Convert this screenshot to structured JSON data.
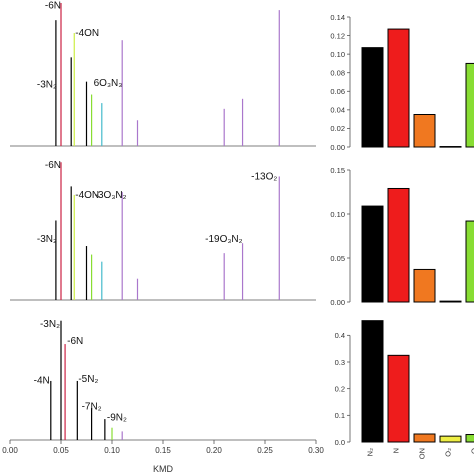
{
  "chart_data": [
    {
      "type": "bar",
      "title": "",
      "xlabel": "",
      "ylabel": "",
      "xlim": [
        0,
        0.3
      ],
      "ylim": [
        0,
        1
      ],
      "peaks": [
        {
          "x": 0.045,
          "y": 0.88,
          "color": "#000000"
        },
        {
          "x": 0.05,
          "y": 1.0,
          "color": "#cc2244"
        },
        {
          "x": 0.06,
          "y": 0.62,
          "color": "#000000"
        },
        {
          "x": 0.063,
          "y": 0.79,
          "color": "#ccee44"
        },
        {
          "x": 0.075,
          "y": 0.45,
          "color": "#000000"
        },
        {
          "x": 0.08,
          "y": 0.36,
          "color": "#88dd33"
        },
        {
          "x": 0.09,
          "y": 0.3,
          "color": "#44bbcc"
        },
        {
          "x": 0.11,
          "y": 0.74,
          "color": "#aa77cc"
        },
        {
          "x": 0.125,
          "y": 0.18,
          "color": "#aa77cc"
        },
        {
          "x": 0.21,
          "y": 0.26,
          "color": "#aa77cc"
        },
        {
          "x": 0.228,
          "y": 0.33,
          "color": "#aa77cc"
        },
        {
          "x": 0.264,
          "y": 0.95,
          "color": "#aa77cc"
        }
      ],
      "labels": [
        {
          "text": "-6N",
          "x": 0.05,
          "y": 0.96,
          "anchor": "end"
        },
        {
          "text": "-4ON",
          "x": 0.064,
          "y": 0.77,
          "anchor": "start"
        },
        {
          "text": "-3N₂",
          "x": 0.046,
          "y": 0.41,
          "anchor": "end"
        },
        {
          "text": "6O₃N₃",
          "x": 0.082,
          "y": 0.42,
          "anchor": "start"
        }
      ]
    },
    {
      "type": "bar",
      "title": "",
      "xlabel": "",
      "ylabel": "",
      "xlim": [
        0,
        0.3
      ],
      "ylim": [
        0,
        1
      ],
      "peaks": [
        {
          "x": 0.045,
          "y": 0.56,
          "color": "#000000"
        },
        {
          "x": 0.05,
          "y": 0.97,
          "color": "#cc2244"
        },
        {
          "x": 0.06,
          "y": 0.8,
          "color": "#000000"
        },
        {
          "x": 0.063,
          "y": 0.74,
          "color": "#ccee44"
        },
        {
          "x": 0.075,
          "y": 0.38,
          "color": "#000000"
        },
        {
          "x": 0.08,
          "y": 0.32,
          "color": "#88dd33"
        },
        {
          "x": 0.09,
          "y": 0.27,
          "color": "#44bbcc"
        },
        {
          "x": 0.11,
          "y": 0.76,
          "color": "#aa77cc"
        },
        {
          "x": 0.125,
          "y": 0.15,
          "color": "#aa77cc"
        },
        {
          "x": 0.21,
          "y": 0.33,
          "color": "#aa77cc"
        },
        {
          "x": 0.228,
          "y": 0.4,
          "color": "#aa77cc"
        },
        {
          "x": 0.264,
          "y": 0.87,
          "color": "#aa77cc"
        }
      ],
      "labels": [
        {
          "text": "-6N",
          "x": 0.05,
          "y": 0.93,
          "anchor": "end"
        },
        {
          "text": "-4ON",
          "x": 0.064,
          "y": 0.72,
          "anchor": "start"
        },
        {
          "text": "-3O₃N₂",
          "x": 0.083,
          "y": 0.72,
          "anchor": "start"
        },
        {
          "text": "-3N₂",
          "x": 0.046,
          "y": 0.41,
          "anchor": "end"
        },
        {
          "text": "-13O₂",
          "x": 0.262,
          "y": 0.85,
          "anchor": "end"
        },
        {
          "text": "-19O₃N₂",
          "x": 0.228,
          "y": 0.41,
          "anchor": "end"
        }
      ]
    },
    {
      "type": "bar",
      "title": "",
      "xlabel": "KMD",
      "ylabel": "",
      "xlim": [
        0,
        0.3
      ],
      "ylim": [
        0,
        1
      ],
      "xticks": [
        0,
        0.05,
        0.1,
        0.15,
        0.2,
        0.25,
        0.3
      ],
      "xtick_labels": [
        "0.00",
        "0.05",
        "0.10",
        "0.15",
        "0.20",
        "0.25",
        "0.30"
      ],
      "peaks": [
        {
          "x": 0.04,
          "y": 0.48,
          "color": "#000000"
        },
        {
          "x": 0.05,
          "y": 0.97,
          "color": "#000000"
        },
        {
          "x": 0.054,
          "y": 0.78,
          "color": "#cc2244"
        },
        {
          "x": 0.066,
          "y": 0.48,
          "color": "#000000"
        },
        {
          "x": 0.08,
          "y": 0.26,
          "color": "#000000"
        },
        {
          "x": 0.093,
          "y": 0.17,
          "color": "#000000"
        },
        {
          "x": 0.1,
          "y": 0.1,
          "color": "#88dd33"
        },
        {
          "x": 0.11,
          "y": 0.07,
          "color": "#aa77cc"
        }
      ],
      "labels": [
        {
          "text": "-3N₂",
          "x": 0.049,
          "y": 0.92,
          "anchor": "end"
        },
        {
          "text": "-6N",
          "x": 0.056,
          "y": 0.78,
          "anchor": "start"
        },
        {
          "text": "-4N",
          "x": 0.039,
          "y": 0.46,
          "anchor": "end"
        },
        {
          "text": "-5N₂",
          "x": 0.067,
          "y": 0.47,
          "anchor": "start"
        },
        {
          "text": "-7N₂",
          "x": 0.08,
          "y": 0.25,
          "anchor": "middle"
        },
        {
          "text": "-9N₂",
          "x": 0.095,
          "y": 0.16,
          "anchor": "start"
        }
      ]
    },
    {
      "type": "bar",
      "title": "",
      "ylim": [
        0,
        0.14
      ],
      "yticks": [
        "0.00",
        "0.02",
        "0.04",
        "0.06",
        "0.08",
        "0.10",
        "0.12",
        "0.14"
      ],
      "categories": [
        "N2",
        "N",
        "ON",
        "O2",
        "O"
      ],
      "values": [
        0.107,
        0.127,
        0.035,
        0.0005,
        0.09
      ],
      "colors": [
        "#000000",
        "#ee1c1c",
        "#f07820",
        "#eeee44",
        "#88dd33"
      ]
    },
    {
      "type": "bar",
      "title": "",
      "ylim": [
        0,
        0.15
      ],
      "yticks": [
        "0.00",
        "0.05",
        "0.10",
        "0.15"
      ],
      "categories": [
        "N2",
        "N",
        "ON",
        "O2",
        "O"
      ],
      "values": [
        0.109,
        0.129,
        0.037,
        0.001,
        0.092
      ],
      "colors": [
        "#000000",
        "#ee1c1c",
        "#f07820",
        "#eeee44",
        "#88dd33"
      ]
    },
    {
      "type": "bar",
      "title": "",
      "ylim": [
        0,
        0.45
      ],
      "yticks": [
        "0.0",
        "0.1",
        "0.2",
        "0.3",
        "0.4"
      ],
      "categories": [
        "N2",
        "N",
        "ON",
        "O2",
        "O"
      ],
      "xtick_labels": [
        "N₂",
        "N",
        "ON",
        "O₂",
        "O"
      ],
      "values": [
        0.455,
        0.325,
        0.03,
        0.022,
        0.028
      ],
      "colors": [
        "#000000",
        "#ee1c1c",
        "#f07820",
        "#eeee44",
        "#88dd33"
      ]
    }
  ]
}
